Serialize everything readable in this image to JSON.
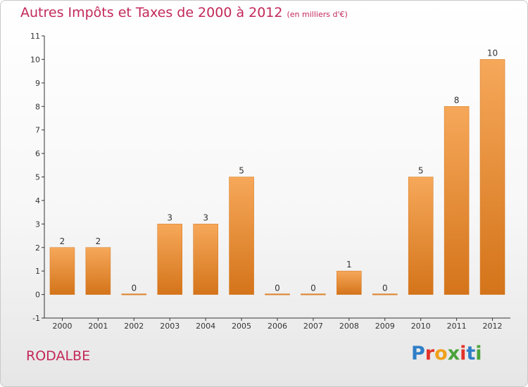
{
  "header": {
    "title": "Autres Impôts et Taxes de 2000 à 2012",
    "unit": "(en milliers d'€)"
  },
  "footer": {
    "commune": "RODALBE",
    "logo_letters": [
      "P",
      "r",
      "o",
      "x",
      "i",
      "t",
      "i"
    ]
  },
  "colors": {
    "title": "#c2285a",
    "bar_light": "#f6a85a",
    "bar_dark": "#d4741a",
    "logo": [
      "#2f7fc7",
      "#e2342b",
      "#f0a01c",
      "#4aa33b",
      "#e2342b",
      "#2f7fc7",
      "#4aa33b"
    ]
  },
  "chart_data": {
    "type": "bar",
    "title": "Autres Impôts et Taxes de 2000 à 2012",
    "subtitle": "(en milliers d'€)",
    "categories": [
      "2000",
      "2001",
      "2002",
      "2003",
      "2004",
      "2005",
      "2006",
      "2007",
      "2008",
      "2009",
      "2010",
      "2011",
      "2012"
    ],
    "values": [
      2,
      2,
      0,
      3,
      3,
      5,
      0,
      0,
      1,
      0,
      5,
      8,
      10
    ],
    "ylim": [
      -1,
      11
    ],
    "yticks": [
      -1,
      0,
      1,
      2,
      3,
      4,
      5,
      6,
      7,
      8,
      9,
      10,
      11
    ],
    "xlabel": "",
    "ylabel": "",
    "grid": false,
    "legend": "none"
  }
}
